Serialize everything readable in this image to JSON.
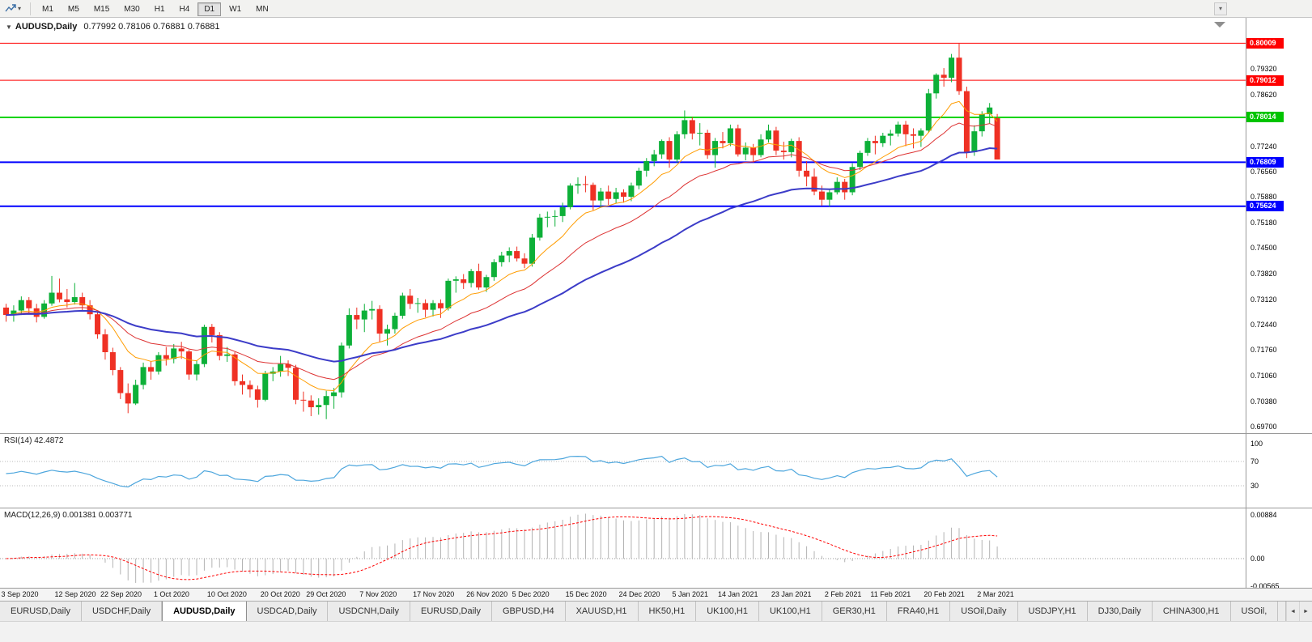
{
  "toolbar": {
    "timeframes": [
      "M1",
      "M5",
      "M15",
      "M30",
      "H1",
      "H4",
      "D1",
      "W1",
      "MN"
    ],
    "active_timeframe": "D1"
  },
  "icons": {
    "collapse": "▼",
    "caret": "▾",
    "overflow": "▾",
    "tab_prev": "◄",
    "tab_next": "►"
  },
  "chart": {
    "symbol_label": "AUDUSD,Daily",
    "ohlc_label": "0.77992 0.78106 0.76881 0.76881"
  },
  "rsi": {
    "label": "RSI(14) 42.4872",
    "value": 42.4872,
    "period": 14,
    "levels": [
      70,
      30
    ],
    "scale_labels": [
      "100",
      "70",
      "30"
    ],
    "color": "#4da6dd"
  },
  "macd": {
    "label": "MACD(12,26,9) 0.001381 0.003771",
    "fast": 12,
    "slow": 26,
    "signal": 9,
    "main_value": "0.001381",
    "signal_value": "0.003771",
    "scale_labels": [
      "0.00884",
      "0.00",
      "-0.00565"
    ],
    "scale_values": [
      0.00884,
      0.0,
      -0.00565
    ],
    "histogram_color": "#b3b3b3",
    "signal_color": "#ff0000"
  },
  "tabs": {
    "items": [
      "EURUSD,Daily",
      "USDCHF,Daily",
      "AUDUSD,Daily",
      "USDCAD,Daily",
      "USDCNH,Daily",
      "EURUSD,Daily",
      "GBPUSD,H4",
      "XAUUSD,H1",
      "HK50,H1",
      "UK100,H1",
      "UK100,H1",
      "GER30,H1",
      "FRA40,H1",
      "USOil,Daily",
      "USDJPY,H1",
      "DJ30,Daily",
      "CHINA300,H1",
      "USOil,"
    ],
    "active_index": 2
  },
  "chart_data": {
    "type": "candlestick",
    "symbol": "AUDUSD",
    "period": "Daily",
    "current_bar": {
      "open": 0.77992,
      "high": 0.78106,
      "low": 0.76881,
      "close": 0.76881
    },
    "colors": {
      "up": "#0db038",
      "down": "#ef3124",
      "background": "#ffffff"
    },
    "price_ticks": [
      0.7932,
      0.7862,
      0.7794,
      0.7724,
      0.7656,
      0.7588,
      0.7518,
      0.745,
      0.7382,
      0.7312,
      0.7244,
      0.7176,
      0.7106,
      0.7038,
      0.697
    ],
    "hlines": [
      {
        "price": 0.80009,
        "color": "#ff0000",
        "thickness": 1,
        "label": "0.80009"
      },
      {
        "price": 0.79012,
        "color": "#ff0000",
        "thickness": 1,
        "label": "0.79012"
      },
      {
        "price": 0.78014,
        "color": "#00d400",
        "thickness": 2,
        "label": "0.78014"
      },
      {
        "price": 0.76809,
        "color": "#0000ff",
        "thickness": 2,
        "label": "0.76809"
      },
      {
        "price": 0.75624,
        "color": "#0000ff",
        "thickness": 2,
        "label": "0.75624"
      }
    ],
    "overlays": [
      {
        "name": "ema-fast",
        "period": 10,
        "color": "#ff9c00",
        "width": 1
      },
      {
        "name": "ema-mid",
        "period": 21,
        "color": "#dd3333",
        "width": 1
      },
      {
        "name": "ema-slow",
        "period": 45,
        "color": "#3c3cc8",
        "width": 2
      }
    ],
    "date_labels": [
      {
        "t": "3 Sep 2020",
        "i": 0
      },
      {
        "t": "12 Sep 2020",
        "i": 7
      },
      {
        "t": "22 Sep 2020",
        "i": 13
      },
      {
        "t": "1 Oct 2020",
        "i": 20
      },
      {
        "t": "10 Oct 2020",
        "i": 27
      },
      {
        "t": "20 Oct 2020",
        "i": 34
      },
      {
        "t": "29 Oct 2020",
        "i": 40
      },
      {
        "t": "7 Nov 2020",
        "i": 47
      },
      {
        "t": "17 Nov 2020",
        "i": 54
      },
      {
        "t": "26 Nov 2020",
        "i": 61
      },
      {
        "t": "5 Dec 2020",
        "i": 67
      },
      {
        "t": "15 Dec 2020",
        "i": 74
      },
      {
        "t": "24 Dec 2020",
        "i": 81
      },
      {
        "t": "5 Jan 2021",
        "i": 88
      },
      {
        "t": "14 Jan 2021",
        "i": 94
      },
      {
        "t": "23 Jan 2021",
        "i": 101
      },
      {
        "t": "2 Feb 2021",
        "i": 108
      },
      {
        "t": "11 Feb 2021",
        "i": 114
      },
      {
        "t": "20 Feb 2021",
        "i": 121
      },
      {
        "t": "2 Mar 2021",
        "i": 128
      }
    ],
    "candles": [
      [
        0.729,
        0.73,
        0.7252,
        0.727
      ],
      [
        0.727,
        0.7296,
        0.7252,
        0.7282
      ],
      [
        0.7282,
        0.732,
        0.727,
        0.731
      ],
      [
        0.731,
        0.7318,
        0.7276,
        0.7288
      ],
      [
        0.7288,
        0.73,
        0.725,
        0.7265
      ],
      [
        0.7265,
        0.731,
        0.726,
        0.7301
      ],
      [
        0.7301,
        0.7375,
        0.7295,
        0.733
      ],
      [
        0.733,
        0.7368,
        0.7304,
        0.7312
      ],
      [
        0.7312,
        0.734,
        0.729,
        0.7305
      ],
      [
        0.7305,
        0.7356,
        0.7298,
        0.7318
      ],
      [
        0.7318,
        0.733,
        0.7282,
        0.7296
      ],
      [
        0.7296,
        0.731,
        0.7258,
        0.7272
      ],
      [
        0.7272,
        0.728,
        0.7206,
        0.7218
      ],
      [
        0.7218,
        0.7232,
        0.715,
        0.717
      ],
      [
        0.717,
        0.7182,
        0.7108,
        0.7122
      ],
      [
        0.7122,
        0.713,
        0.7044,
        0.706
      ],
      [
        0.706,
        0.7086,
        0.7006,
        0.7032
      ],
      [
        0.7032,
        0.7096,
        0.7028,
        0.7082
      ],
      [
        0.7082,
        0.7142,
        0.707,
        0.713
      ],
      [
        0.713,
        0.7146,
        0.7096,
        0.7118
      ],
      [
        0.7118,
        0.717,
        0.711,
        0.7162
      ],
      [
        0.7162,
        0.7184,
        0.7134,
        0.7152
      ],
      [
        0.7152,
        0.7192,
        0.714,
        0.718
      ],
      [
        0.718,
        0.7198,
        0.7152,
        0.7172
      ],
      [
        0.7172,
        0.7176,
        0.7096,
        0.711
      ],
      [
        0.711,
        0.7148,
        0.7094,
        0.7138
      ],
      [
        0.7138,
        0.7244,
        0.713,
        0.7238
      ],
      [
        0.7238,
        0.7246,
        0.7196,
        0.7216
      ],
      [
        0.7216,
        0.7224,
        0.7148,
        0.716
      ],
      [
        0.716,
        0.7184,
        0.7144,
        0.7164
      ],
      [
        0.7164,
        0.717,
        0.708,
        0.7092
      ],
      [
        0.7092,
        0.711,
        0.7056,
        0.7082
      ],
      [
        0.7082,
        0.7094,
        0.7048,
        0.707
      ],
      [
        0.707,
        0.708,
        0.7021,
        0.7042
      ],
      [
        0.7042,
        0.712,
        0.7038,
        0.7112
      ],
      [
        0.7112,
        0.713,
        0.7092,
        0.7118
      ],
      [
        0.7118,
        0.716,
        0.7104,
        0.7138
      ],
      [
        0.7138,
        0.7148,
        0.7106,
        0.7128
      ],
      [
        0.7128,
        0.7136,
        0.703,
        0.7042
      ],
      [
        0.7042,
        0.7064,
        0.701,
        0.704
      ],
      [
        0.704,
        0.7054,
        0.6998,
        0.7022
      ],
      [
        0.7022,
        0.7046,
        0.7002,
        0.7028
      ],
      [
        0.7028,
        0.7066,
        0.699,
        0.7052
      ],
      [
        0.7052,
        0.7074,
        0.7018,
        0.7062
      ],
      [
        0.7062,
        0.7196,
        0.7048,
        0.7188
      ],
      [
        0.7188,
        0.7288,
        0.718,
        0.727
      ],
      [
        0.727,
        0.729,
        0.7232,
        0.7258
      ],
      [
        0.7258,
        0.73,
        0.7224,
        0.7282
      ],
      [
        0.7282,
        0.7308,
        0.7258,
        0.7286
      ],
      [
        0.7286,
        0.7296,
        0.7198,
        0.722
      ],
      [
        0.722,
        0.7244,
        0.7188,
        0.7232
      ],
      [
        0.7232,
        0.7276,
        0.722,
        0.7268
      ],
      [
        0.7268,
        0.733,
        0.726,
        0.7322
      ],
      [
        0.7322,
        0.734,
        0.7286,
        0.73
      ],
      [
        0.73,
        0.7316,
        0.7276,
        0.7302
      ],
      [
        0.7302,
        0.7312,
        0.7264,
        0.7284
      ],
      [
        0.7284,
        0.731,
        0.7266,
        0.7302
      ],
      [
        0.7302,
        0.7312,
        0.7262,
        0.7288
      ],
      [
        0.7288,
        0.7368,
        0.7282,
        0.7362
      ],
      [
        0.7362,
        0.7374,
        0.733,
        0.7366
      ],
      [
        0.7366,
        0.738,
        0.734,
        0.7356
      ],
      [
        0.7356,
        0.7394,
        0.7344,
        0.7388
      ],
      [
        0.7388,
        0.7408,
        0.7338,
        0.7344
      ],
      [
        0.7344,
        0.7378,
        0.7332,
        0.7372
      ],
      [
        0.7372,
        0.742,
        0.7362,
        0.7412
      ],
      [
        0.7412,
        0.744,
        0.74,
        0.743
      ],
      [
        0.743,
        0.7452,
        0.7412,
        0.7442
      ],
      [
        0.7442,
        0.7454,
        0.7414,
        0.7422
      ],
      [
        0.7422,
        0.7436,
        0.7396,
        0.7408
      ],
      [
        0.7408,
        0.7488,
        0.74,
        0.7478
      ],
      [
        0.7478,
        0.7542,
        0.747,
        0.7532
      ],
      [
        0.7532,
        0.7548,
        0.7506,
        0.7534
      ],
      [
        0.7534,
        0.7552,
        0.7508,
        0.7536
      ],
      [
        0.7536,
        0.7572,
        0.752,
        0.756
      ],
      [
        0.756,
        0.7624,
        0.7554,
        0.7618
      ],
      [
        0.7618,
        0.764,
        0.7596,
        0.7622
      ],
      [
        0.7622,
        0.7644,
        0.76,
        0.762
      ],
      [
        0.762,
        0.7626,
        0.7552,
        0.7578
      ],
      [
        0.7578,
        0.7612,
        0.756,
        0.7602
      ],
      [
        0.7602,
        0.7618,
        0.7566,
        0.7582
      ],
      [
        0.7582,
        0.7612,
        0.757,
        0.76
      ],
      [
        0.76,
        0.7608,
        0.7572,
        0.7588
      ],
      [
        0.7588,
        0.7626,
        0.7576,
        0.7618
      ],
      [
        0.7618,
        0.7666,
        0.7608,
        0.7658
      ],
      [
        0.7658,
        0.7692,
        0.7642,
        0.7684
      ],
      [
        0.7684,
        0.7714,
        0.767,
        0.7702
      ],
      [
        0.7702,
        0.7742,
        0.769,
        0.7738
      ],
      [
        0.7738,
        0.7748,
        0.7666,
        0.7688
      ],
      [
        0.7688,
        0.7764,
        0.768,
        0.7756
      ],
      [
        0.7756,
        0.782,
        0.7744,
        0.7794
      ],
      [
        0.7794,
        0.7802,
        0.7742,
        0.7758
      ],
      [
        0.7758,
        0.7786,
        0.7726,
        0.776
      ],
      [
        0.776,
        0.7768,
        0.769,
        0.77
      ],
      [
        0.77,
        0.7746,
        0.7666,
        0.7738
      ],
      [
        0.7738,
        0.7762,
        0.7718,
        0.7732
      ],
      [
        0.7732,
        0.7782,
        0.7724,
        0.7772
      ],
      [
        0.7772,
        0.7782,
        0.7696,
        0.7702
      ],
      [
        0.7702,
        0.7734,
        0.7686,
        0.772
      ],
      [
        0.772,
        0.773,
        0.768,
        0.77
      ],
      [
        0.77,
        0.7756,
        0.7694,
        0.7742
      ],
      [
        0.7742,
        0.7782,
        0.7734,
        0.7766
      ],
      [
        0.7766,
        0.7776,
        0.77,
        0.7712
      ],
      [
        0.7712,
        0.7736,
        0.7688,
        0.7708
      ],
      [
        0.7708,
        0.7744,
        0.7694,
        0.7738
      ],
      [
        0.7738,
        0.7748,
        0.7642,
        0.7658
      ],
      [
        0.7658,
        0.7684,
        0.7616,
        0.7642
      ],
      [
        0.7642,
        0.7664,
        0.7592,
        0.7602
      ],
      [
        0.7602,
        0.7618,
        0.7564,
        0.758
      ],
      [
        0.758,
        0.7608,
        0.7562,
        0.76
      ],
      [
        0.76,
        0.764,
        0.7594,
        0.7628
      ],
      [
        0.7628,
        0.7636,
        0.758,
        0.76
      ],
      [
        0.76,
        0.7678,
        0.7592,
        0.7668
      ],
      [
        0.7668,
        0.7712,
        0.766,
        0.7706
      ],
      [
        0.7706,
        0.7746,
        0.7698,
        0.7738
      ],
      [
        0.7738,
        0.7752,
        0.7702,
        0.7732
      ],
      [
        0.7732,
        0.776,
        0.7722,
        0.7752
      ],
      [
        0.7752,
        0.7768,
        0.7726,
        0.7758
      ],
      [
        0.7758,
        0.779,
        0.775,
        0.7782
      ],
      [
        0.7782,
        0.7792,
        0.7724,
        0.7756
      ],
      [
        0.7756,
        0.7772,
        0.7718,
        0.7752
      ],
      [
        0.7752,
        0.7772,
        0.7722,
        0.7766
      ],
      [
        0.7766,
        0.7878,
        0.776,
        0.7866
      ],
      [
        0.7866,
        0.792,
        0.7852,
        0.7916
      ],
      [
        0.7916,
        0.7934,
        0.7884,
        0.7908
      ],
      [
        0.7908,
        0.7972,
        0.7896,
        0.7962
      ],
      [
        0.7962,
        0.8001,
        0.7862,
        0.7872
      ],
      [
        0.7872,
        0.7884,
        0.7692,
        0.7708
      ],
      [
        0.7708,
        0.778,
        0.7698,
        0.7764
      ],
      [
        0.7764,
        0.7818,
        0.775,
        0.781
      ],
      [
        0.781,
        0.784,
        0.7784,
        0.7828
      ],
      [
        0.77992,
        0.78106,
        0.76881,
        0.76881
      ]
    ]
  }
}
